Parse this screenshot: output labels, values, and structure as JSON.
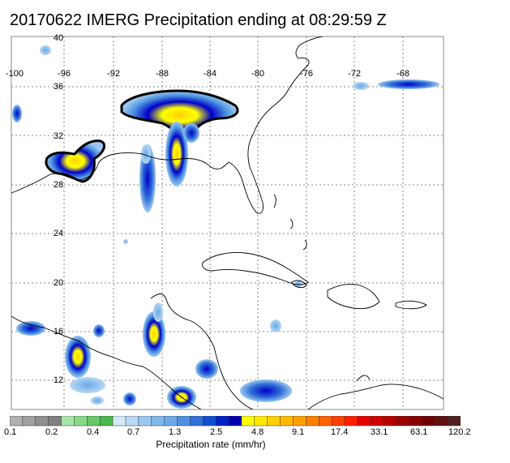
{
  "title": "20170622 IMERG Precipitation ending at 08:29:59 Z",
  "map": {
    "lon_labels": [
      "-100",
      "-96",
      "-92",
      "-88",
      "-84",
      "-80",
      "-76",
      "-72",
      "-68"
    ],
    "lat_labels": [
      "40",
      "36",
      "32",
      "28",
      "24",
      "20",
      "16",
      "12"
    ],
    "grid": true
  },
  "colorbar": {
    "label": "Precipitation rate (mm/hr)",
    "tick_labels": [
      "0.1",
      "0.2",
      "0.4",
      "0.7",
      "1.3",
      "2.5",
      "4.8",
      "9.1",
      "17.4",
      "33.1",
      "63.1",
      "120.2"
    ],
    "colors": [
      "#b0b0b0",
      "#a0a0a0",
      "#909090",
      "#808080",
      "#a8e6a8",
      "#88d888",
      "#68c868",
      "#48b848",
      "#d4e8f8",
      "#b8d8f4",
      "#9cc8f0",
      "#80b8ec",
      "#6aa8e8",
      "#5090e0",
      "#3070d8",
      "#1050d0",
      "#0020c8",
      "#0000b0",
      "#ffff00",
      "#ffe800",
      "#ffd000",
      "#ffb800",
      "#ffa000",
      "#ff8000",
      "#ff6000",
      "#ff4000",
      "#ff2000",
      "#e80000",
      "#d00000",
      "#b80000",
      "#a00000",
      "#880000",
      "#700000",
      "#601010",
      "#502020"
    ]
  }
}
